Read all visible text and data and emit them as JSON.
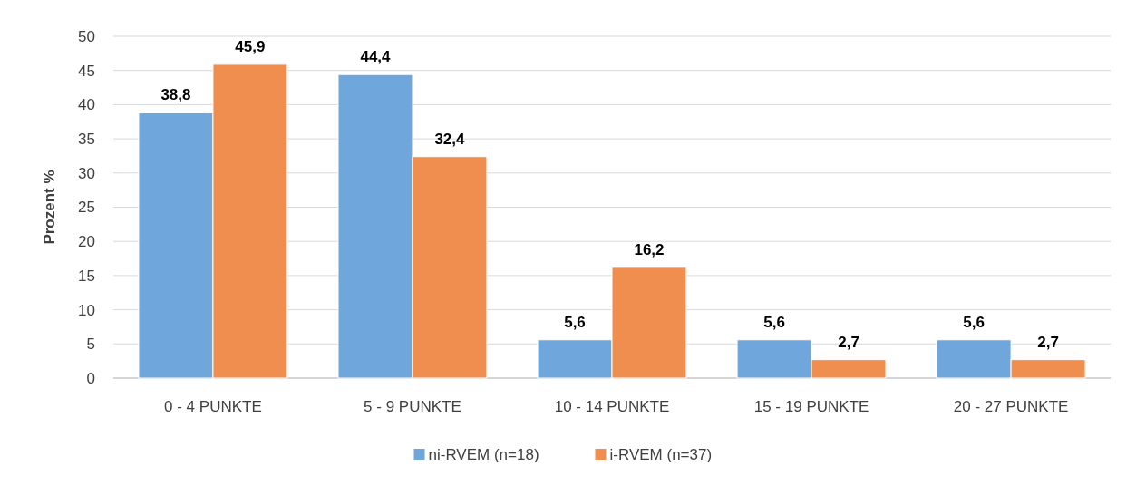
{
  "chart_data": {
    "type": "bar",
    "ylabel": "Prozent %",
    "categories": [
      "0 - 4 PUNKTE",
      "5 - 9 PUNKTE",
      "10 - 14 PUNKTE",
      "15 - 19 PUNKTE",
      "20 - 27 PUNKTE"
    ],
    "series": [
      {
        "name": "ni-RVEM (n=18)",
        "color": "#6fa6db",
        "values": [
          38.8,
          44.4,
          5.6,
          5.6,
          5.6
        ],
        "value_labels": [
          "38,8",
          "44,4",
          "5,6",
          "5,6",
          "5,6"
        ]
      },
      {
        "name": "i-RVEM (n=37)",
        "color": "#ef8e4e",
        "values": [
          45.9,
          32.4,
          16.2,
          2.7,
          2.7
        ],
        "value_labels": [
          "45,9",
          "32,4",
          "16,2",
          "2,7",
          "2,7"
        ]
      }
    ],
    "ylim": [
      0,
      50
    ],
    "yticks": [
      0,
      5,
      10,
      15,
      20,
      25,
      30,
      35,
      40,
      45,
      50
    ],
    "grid": "y",
    "legend": "bottom"
  }
}
